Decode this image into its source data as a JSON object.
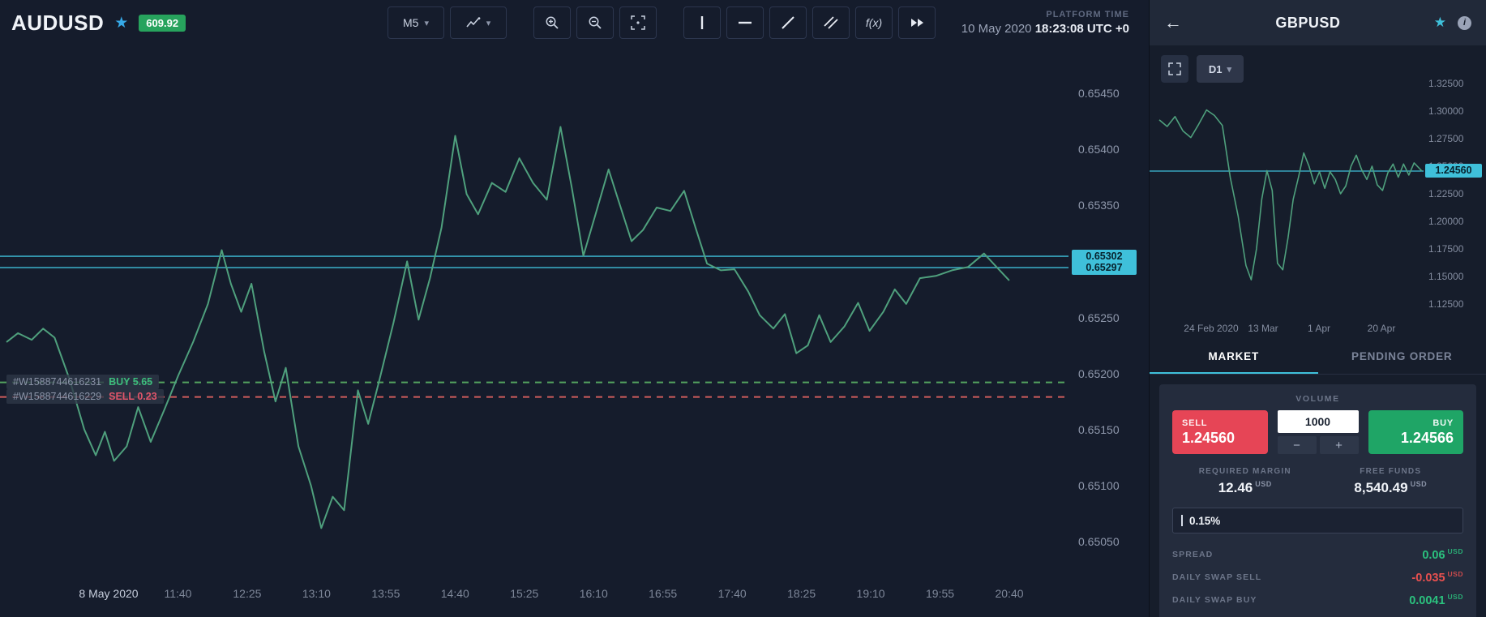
{
  "colors": {
    "accent_cyan": "#3fc0da",
    "line_green": "#4fa07d",
    "buy_green": "#1fa566",
    "sell_red": "#e64556",
    "dashed_buy_green": "#55a45f",
    "dashed_sell_red": "#cf5c5c",
    "badge_green": "#27a35d",
    "value_green": "#2bc17e",
    "value_red": "#e8504f"
  },
  "icons": {
    "star": "★",
    "caret_down": "▾",
    "back_arrow": "←",
    "info": "i",
    "minus": "−",
    "plus": "+"
  },
  "main": {
    "symbol": "AUDUSD",
    "badge": "609.92",
    "timeframe": "M5",
    "fx_label": "f(x)",
    "platform_time_label": "PLATFORM TIME",
    "platform_date": "10 May 2020",
    "platform_clock": "18:23:08 UTC +0"
  },
  "side": {
    "symbol": "GBPUSD",
    "timeframe": "D1",
    "tabs": [
      "MARKET",
      "PENDING ORDER"
    ],
    "volume_label": "VOLUME",
    "volume_value": "1000",
    "sell": {
      "label": "SELL",
      "price": "1.24560"
    },
    "buy": {
      "label": "BUY",
      "price": "1.24566"
    },
    "required_margin": {
      "label": "REQUIRED MARGIN",
      "value": "12.46",
      "currency": "USD"
    },
    "free_funds": {
      "label": "FREE FUNDS",
      "value": "8,540.49",
      "currency": "USD"
    },
    "risk_value": "0.15%",
    "info_rows": [
      {
        "label": "SPREAD",
        "value": "0.06",
        "currency": "USD",
        "tone": "green"
      },
      {
        "label": "DAILY SWAP SELL",
        "value": "-0.035",
        "currency": "USD",
        "tone": "red"
      },
      {
        "label": "DAILY SWAP BUY",
        "value": "0.0041",
        "currency": "USD",
        "tone": "green"
      }
    ]
  },
  "chart_data": [
    {
      "type": "line",
      "symbol": "AUDUSD",
      "timeframe": "M5",
      "title": "AUDUSD M5 price line",
      "ylim": [
        0.6505,
        0.6545
      ],
      "y_ticks": [
        "0.65450",
        "0.65400",
        "0.65350",
        "0.65300",
        "0.65250",
        "0.65200",
        "0.65150",
        "0.65100",
        "0.65050"
      ],
      "x_ticks": [
        "8 May 2020",
        "11:40",
        "12:25",
        "13:10",
        "13:55",
        "14:40",
        "15:25",
        "16:10",
        "16:55",
        "17:40",
        "18:25",
        "19:10",
        "19:55",
        "20:40"
      ],
      "price_lines": [
        {
          "label": "0.65302",
          "price": 0.65302
        },
        {
          "label": "0.65297",
          "price": 0.65297
        }
      ],
      "orders": [
        {
          "id": "#W1588744616231",
          "side": "BUY",
          "value": "5.65",
          "price": 0.65192
        },
        {
          "id": "#W1588744616229",
          "side": "SELL",
          "value": "0.23",
          "price": 0.65179
        }
      ],
      "series": [
        [
          0.0,
          0.65228
        ],
        [
          0.01,
          0.65236
        ],
        [
          0.022,
          0.6523
        ],
        [
          0.032,
          0.6524
        ],
        [
          0.042,
          0.65232
        ],
        [
          0.055,
          0.65195
        ],
        [
          0.068,
          0.6515
        ],
        [
          0.078,
          0.65127
        ],
        [
          0.086,
          0.65148
        ],
        [
          0.094,
          0.65122
        ],
        [
          0.105,
          0.65135
        ],
        [
          0.115,
          0.6517
        ],
        [
          0.126,
          0.65139
        ],
        [
          0.138,
          0.65168
        ],
        [
          0.15,
          0.65198
        ],
        [
          0.163,
          0.65228
        ],
        [
          0.176,
          0.65262
        ],
        [
          0.188,
          0.6531
        ],
        [
          0.196,
          0.6528
        ],
        [
          0.205,
          0.65255
        ],
        [
          0.214,
          0.6528
        ],
        [
          0.225,
          0.6522
        ],
        [
          0.235,
          0.65175
        ],
        [
          0.244,
          0.65205
        ],
        [
          0.255,
          0.65135
        ],
        [
          0.266,
          0.651
        ],
        [
          0.275,
          0.65062
        ],
        [
          0.285,
          0.6509
        ],
        [
          0.295,
          0.65078
        ],
        [
          0.307,
          0.65185
        ],
        [
          0.316,
          0.65155
        ],
        [
          0.326,
          0.65195
        ],
        [
          0.338,
          0.65245
        ],
        [
          0.35,
          0.653
        ],
        [
          0.36,
          0.65248
        ],
        [
          0.37,
          0.65285
        ],
        [
          0.38,
          0.6533
        ],
        [
          0.392,
          0.65412
        ],
        [
          0.402,
          0.6536
        ],
        [
          0.412,
          0.65342
        ],
        [
          0.424,
          0.6537
        ],
        [
          0.436,
          0.65362
        ],
        [
          0.448,
          0.65392
        ],
        [
          0.46,
          0.6537
        ],
        [
          0.472,
          0.65355
        ],
        [
          0.484,
          0.6542
        ],
        [
          0.494,
          0.65365
        ],
        [
          0.504,
          0.65305
        ],
        [
          0.514,
          0.6534
        ],
        [
          0.526,
          0.65382
        ],
        [
          0.536,
          0.6535
        ],
        [
          0.546,
          0.65318
        ],
        [
          0.556,
          0.65328
        ],
        [
          0.568,
          0.65348
        ],
        [
          0.58,
          0.65345
        ],
        [
          0.592,
          0.65363
        ],
        [
          0.602,
          0.6533
        ],
        [
          0.612,
          0.65298
        ],
        [
          0.624,
          0.65292
        ],
        [
          0.636,
          0.65293
        ],
        [
          0.648,
          0.65273
        ],
        [
          0.658,
          0.65252
        ],
        [
          0.67,
          0.6524
        ],
        [
          0.68,
          0.65253
        ],
        [
          0.69,
          0.65218
        ],
        [
          0.7,
          0.65225
        ],
        [
          0.71,
          0.65252
        ],
        [
          0.72,
          0.65228
        ],
        [
          0.732,
          0.65242
        ],
        [
          0.744,
          0.65263
        ],
        [
          0.754,
          0.65238
        ],
        [
          0.766,
          0.65255
        ],
        [
          0.776,
          0.65275
        ],
        [
          0.786,
          0.65262
        ],
        [
          0.798,
          0.65285
        ],
        [
          0.812,
          0.65287
        ],
        [
          0.826,
          0.65292
        ],
        [
          0.84,
          0.65295
        ],
        [
          0.854,
          0.65307
        ],
        [
          0.864,
          0.65296
        ],
        [
          0.876,
          0.65283
        ]
      ]
    },
    {
      "type": "line",
      "symbol": "GBPUSD",
      "timeframe": "D1",
      "title": "GBPUSD D1 price line",
      "ylim": [
        1.125,
        1.325
      ],
      "y_ticks": [
        "1.32500",
        "1.30000",
        "1.27500",
        "1.25000",
        "1.22500",
        "1.20000",
        "1.17500",
        "1.15000",
        "1.12500"
      ],
      "x_ticks": [
        "24 Feb 2020",
        "13 Mar",
        "1 Apr",
        "20 Apr"
      ],
      "price_lines": [
        {
          "label": "1.24560",
          "price": 1.2456
        }
      ],
      "orders": [],
      "series": [
        [
          0.0,
          1.292
        ],
        [
          0.03,
          1.286
        ],
        [
          0.06,
          1.295
        ],
        [
          0.09,
          1.282
        ],
        [
          0.12,
          1.276
        ],
        [
          0.15,
          1.288
        ],
        [
          0.18,
          1.301
        ],
        [
          0.21,
          1.296
        ],
        [
          0.24,
          1.287
        ],
        [
          0.27,
          1.24
        ],
        [
          0.3,
          1.205
        ],
        [
          0.33,
          1.16
        ],
        [
          0.35,
          1.147
        ],
        [
          0.37,
          1.175
        ],
        [
          0.39,
          1.22
        ],
        [
          0.41,
          1.246
        ],
        [
          0.43,
          1.228
        ],
        [
          0.45,
          1.162
        ],
        [
          0.47,
          1.156
        ],
        [
          0.49,
          1.185
        ],
        [
          0.51,
          1.22
        ],
        [
          0.53,
          1.24
        ],
        [
          0.55,
          1.262
        ],
        [
          0.57,
          1.25
        ],
        [
          0.59,
          1.234
        ],
        [
          0.61,
          1.245
        ],
        [
          0.63,
          1.23
        ],
        [
          0.65,
          1.245
        ],
        [
          0.67,
          1.238
        ],
        [
          0.69,
          1.225
        ],
        [
          0.71,
          1.232
        ],
        [
          0.73,
          1.25
        ],
        [
          0.75,
          1.26
        ],
        [
          0.77,
          1.247
        ],
        [
          0.79,
          1.238
        ],
        [
          0.81,
          1.25
        ],
        [
          0.83,
          1.233
        ],
        [
          0.85,
          1.228
        ],
        [
          0.87,
          1.244
        ],
        [
          0.89,
          1.252
        ],
        [
          0.91,
          1.24
        ],
        [
          0.93,
          1.252
        ],
        [
          0.95,
          1.242
        ],
        [
          0.97,
          1.253
        ],
        [
          1.0,
          1.2456
        ]
      ]
    }
  ]
}
